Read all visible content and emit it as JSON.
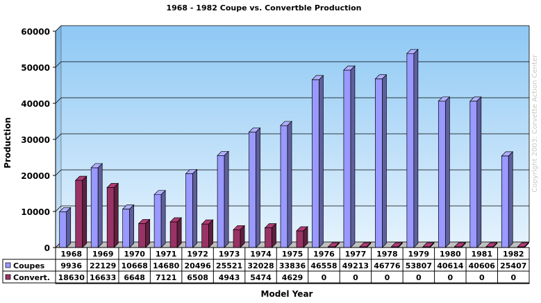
{
  "chart_data": {
    "type": "bar",
    "title": "1968 - 1982 Coupe vs. Convertble Production",
    "xlabel": "Model Year",
    "ylabel": "Production",
    "ylim": [
      0,
      60000
    ],
    "yticks": [
      0,
      10000,
      20000,
      30000,
      40000,
      50000,
      60000
    ],
    "grid": true,
    "legend": "data-table-left",
    "categories": [
      "1968",
      "1969",
      "1970",
      "1971",
      "1972",
      "1973",
      "1974",
      "1975",
      "1976",
      "1977",
      "1978",
      "1979",
      "1980",
      "1981",
      "1982"
    ],
    "series": [
      {
        "name": "Coupes",
        "color": "#9999ff",
        "values": [
          9936,
          22129,
          10668,
          14680,
          20496,
          25521,
          32028,
          33836,
          46558,
          49213,
          46776,
          53807,
          40614,
          40606,
          25407
        ]
      },
      {
        "name": "Convert.",
        "color": "#993366",
        "values": [
          18630,
          16633,
          6648,
          7121,
          6508,
          4943,
          5474,
          4629,
          0,
          0,
          0,
          0,
          0,
          0,
          0
        ]
      }
    ],
    "watermark": "Copyright 2003: Corvette Action Center"
  }
}
